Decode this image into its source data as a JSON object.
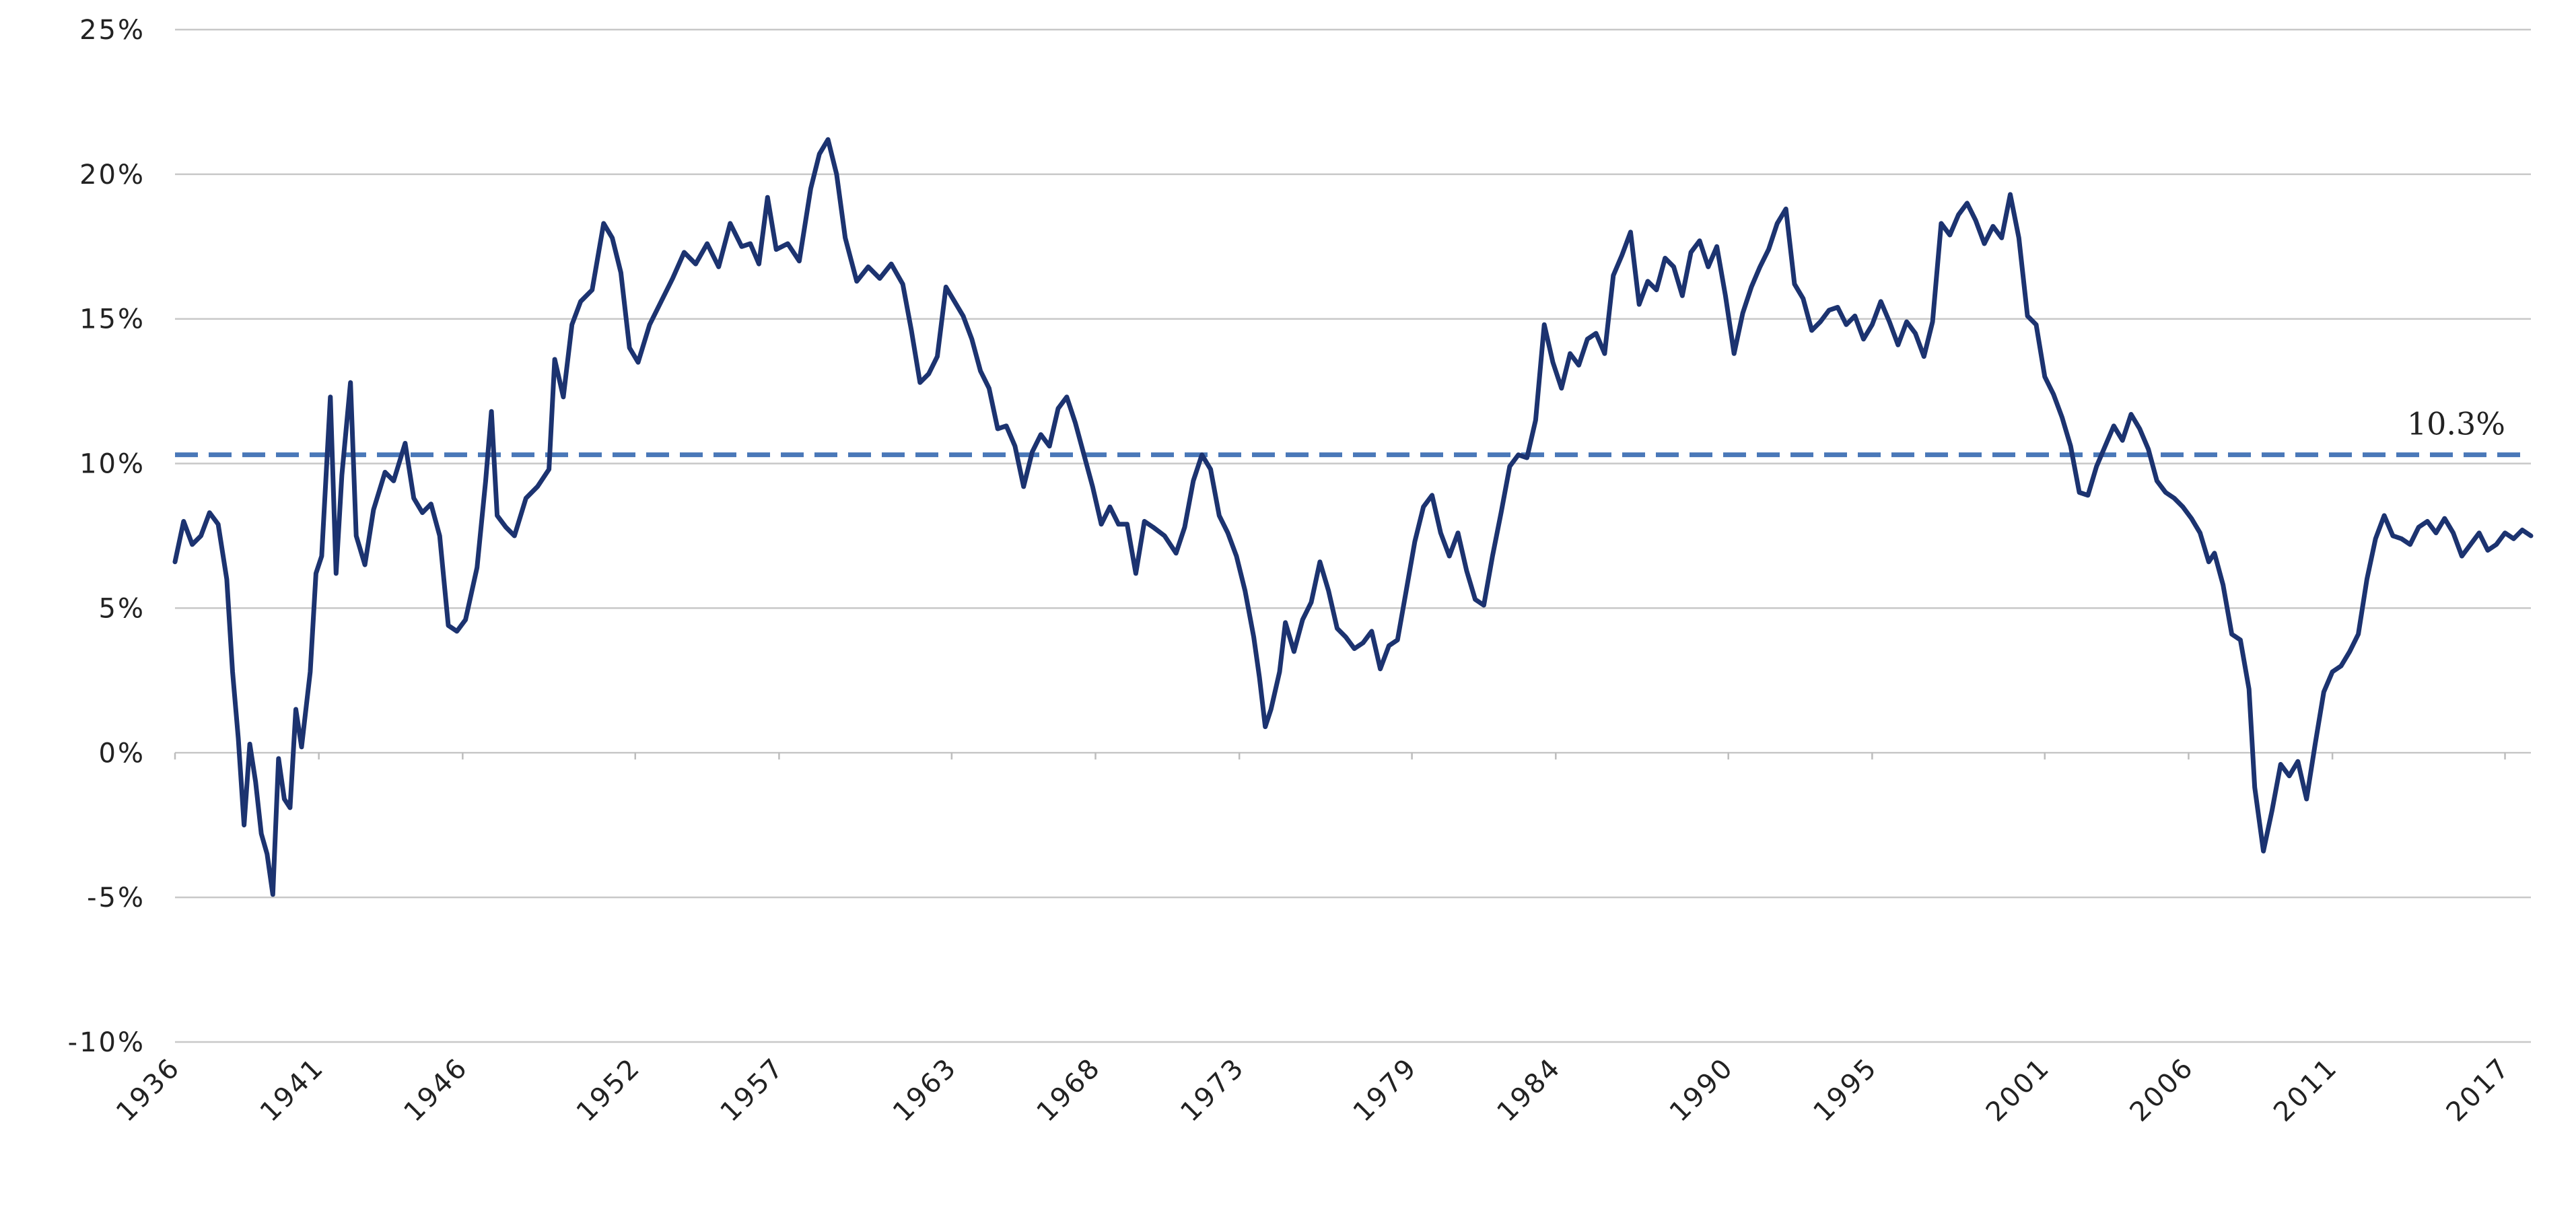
{
  "chart_data": {
    "type": "line",
    "title": "",
    "xlabel": "",
    "ylabel": "",
    "x_range": [
      1936,
      2017.9
    ],
    "ylim": [
      -10,
      25
    ],
    "y_tick_values": [
      -10,
      -5,
      0,
      5,
      10,
      15,
      20,
      25
    ],
    "y_tick_labels": [
      "-10%",
      "-5%",
      "0%",
      "5%",
      "10%",
      "15%",
      "20%",
      "25%"
    ],
    "x_tick_values": [
      1936,
      1941,
      1946,
      1952,
      1957,
      1963,
      1968,
      1973,
      1979,
      1984,
      1990,
      1995,
      2001,
      2006,
      2011,
      2017
    ],
    "x_tick_labels": [
      "1936",
      "1941",
      "1946",
      "1952",
      "1957",
      "1963",
      "1968",
      "1973",
      "1979",
      "1984",
      "1990",
      "1995",
      "2001",
      "2006",
      "2011",
      "2017"
    ],
    "grid": true,
    "colors": {
      "series": "#1c3370",
      "average": "#4a78b8",
      "grid": "#c8c8c8"
    },
    "average": {
      "value": 10.3,
      "label": "10.3%"
    },
    "series": [
      {
        "values": [
          [
            1936.0,
            6.6
          ],
          [
            1936.3,
            8.0
          ],
          [
            1936.6,
            7.2
          ],
          [
            1936.9,
            7.5
          ],
          [
            1937.2,
            8.3
          ],
          [
            1937.5,
            7.9
          ],
          [
            1937.8,
            6.0
          ],
          [
            1938.0,
            2.8
          ],
          [
            1938.2,
            0.5
          ],
          [
            1938.4,
            -2.5
          ],
          [
            1938.6,
            0.3
          ],
          [
            1938.8,
            -1.0
          ],
          [
            1939.0,
            -2.8
          ],
          [
            1939.2,
            -3.5
          ],
          [
            1939.4,
            -4.9
          ],
          [
            1939.6,
            -0.2
          ],
          [
            1939.8,
            -1.6
          ],
          [
            1940.0,
            -1.9
          ],
          [
            1940.2,
            1.5
          ],
          [
            1940.4,
            0.2
          ],
          [
            1940.7,
            2.8
          ],
          [
            1940.9,
            6.2
          ],
          [
            1941.1,
            6.8
          ],
          [
            1941.4,
            12.3
          ],
          [
            1941.6,
            6.2
          ],
          [
            1941.8,
            9.6
          ],
          [
            1942.1,
            12.8
          ],
          [
            1942.3,
            7.5
          ],
          [
            1942.6,
            6.5
          ],
          [
            1942.9,
            8.4
          ],
          [
            1943.3,
            9.7
          ],
          [
            1943.6,
            9.4
          ],
          [
            1944.0,
            10.7
          ],
          [
            1944.3,
            8.8
          ],
          [
            1944.6,
            8.3
          ],
          [
            1944.9,
            8.6
          ],
          [
            1945.2,
            7.5
          ],
          [
            1945.5,
            4.4
          ],
          [
            1945.8,
            4.2
          ],
          [
            1946.1,
            4.6
          ],
          [
            1946.5,
            6.4
          ],
          [
            1946.8,
            9.4
          ],
          [
            1947.0,
            11.8
          ],
          [
            1947.2,
            8.2
          ],
          [
            1947.5,
            7.8
          ],
          [
            1947.8,
            7.5
          ],
          [
            1948.2,
            8.8
          ],
          [
            1948.6,
            9.2
          ],
          [
            1949.0,
            9.8
          ],
          [
            1949.2,
            13.6
          ],
          [
            1949.5,
            12.3
          ],
          [
            1949.8,
            14.8
          ],
          [
            1950.1,
            15.6
          ],
          [
            1950.5,
            16.0
          ],
          [
            1950.9,
            18.3
          ],
          [
            1951.2,
            17.8
          ],
          [
            1951.5,
            16.6
          ],
          [
            1951.8,
            14.0
          ],
          [
            1952.1,
            13.5
          ],
          [
            1952.5,
            14.8
          ],
          [
            1952.9,
            15.6
          ],
          [
            1953.3,
            16.4
          ],
          [
            1953.7,
            17.3
          ],
          [
            1954.1,
            16.9
          ],
          [
            1954.5,
            17.6
          ],
          [
            1954.9,
            16.8
          ],
          [
            1955.3,
            18.3
          ],
          [
            1955.7,
            17.5
          ],
          [
            1956.0,
            17.6
          ],
          [
            1956.3,
            16.9
          ],
          [
            1956.6,
            19.2
          ],
          [
            1956.9,
            17.4
          ],
          [
            1957.3,
            17.6
          ],
          [
            1957.7,
            17.0
          ],
          [
            1958.1,
            19.5
          ],
          [
            1958.4,
            20.7
          ],
          [
            1958.7,
            21.2
          ],
          [
            1959.0,
            20.0
          ],
          [
            1959.3,
            17.8
          ],
          [
            1959.7,
            16.3
          ],
          [
            1960.1,
            16.8
          ],
          [
            1960.5,
            16.4
          ],
          [
            1960.9,
            16.9
          ],
          [
            1961.3,
            16.2
          ],
          [
            1961.6,
            14.6
          ],
          [
            1961.9,
            12.8
          ],
          [
            1962.2,
            13.1
          ],
          [
            1962.5,
            13.7
          ],
          [
            1962.8,
            16.1
          ],
          [
            1963.1,
            15.6
          ],
          [
            1963.4,
            15.1
          ],
          [
            1963.7,
            14.3
          ],
          [
            1964.0,
            13.2
          ],
          [
            1964.3,
            12.6
          ],
          [
            1964.6,
            11.2
          ],
          [
            1964.9,
            11.3
          ],
          [
            1965.2,
            10.6
          ],
          [
            1965.5,
            9.2
          ],
          [
            1965.8,
            10.4
          ],
          [
            1966.1,
            11.0
          ],
          [
            1966.4,
            10.6
          ],
          [
            1966.7,
            11.9
          ],
          [
            1967.0,
            12.3
          ],
          [
            1967.3,
            11.4
          ],
          [
            1967.6,
            10.3
          ],
          [
            1967.9,
            9.2
          ],
          [
            1968.2,
            7.9
          ],
          [
            1968.5,
            8.5
          ],
          [
            1968.8,
            7.9
          ],
          [
            1969.1,
            7.9
          ],
          [
            1969.4,
            6.2
          ],
          [
            1969.7,
            8.0
          ],
          [
            1970.0,
            7.8
          ],
          [
            1970.4,
            7.5
          ],
          [
            1970.8,
            6.9
          ],
          [
            1971.1,
            7.8
          ],
          [
            1971.4,
            9.4
          ],
          [
            1971.7,
            10.3
          ],
          [
            1972.0,
            9.8
          ],
          [
            1972.3,
            8.2
          ],
          [
            1972.6,
            7.6
          ],
          [
            1972.9,
            6.8
          ],
          [
            1973.2,
            5.6
          ],
          [
            1973.5,
            4.0
          ],
          [
            1973.7,
            2.6
          ],
          [
            1973.9,
            0.9
          ],
          [
            1974.1,
            1.5
          ],
          [
            1974.4,
            2.8
          ],
          [
            1974.6,
            4.5
          ],
          [
            1974.9,
            3.5
          ],
          [
            1975.2,
            4.6
          ],
          [
            1975.5,
            5.2
          ],
          [
            1975.8,
            6.6
          ],
          [
            1976.1,
            5.6
          ],
          [
            1976.4,
            4.3
          ],
          [
            1976.7,
            4.0
          ],
          [
            1977.0,
            3.6
          ],
          [
            1977.3,
            3.8
          ],
          [
            1977.6,
            4.2
          ],
          [
            1977.9,
            2.9
          ],
          [
            1978.2,
            3.7
          ],
          [
            1978.5,
            3.9
          ],
          [
            1978.8,
            5.6
          ],
          [
            1979.1,
            7.3
          ],
          [
            1979.4,
            8.5
          ],
          [
            1979.7,
            8.9
          ],
          [
            1980.0,
            7.6
          ],
          [
            1980.3,
            6.8
          ],
          [
            1980.6,
            7.6
          ],
          [
            1980.9,
            6.3
          ],
          [
            1981.2,
            5.3
          ],
          [
            1981.5,
            5.1
          ],
          [
            1981.8,
            6.8
          ],
          [
            1982.1,
            8.3
          ],
          [
            1982.4,
            9.9
          ],
          [
            1982.7,
            10.3
          ],
          [
            1983.0,
            10.2
          ],
          [
            1983.3,
            11.5
          ],
          [
            1983.6,
            14.8
          ],
          [
            1983.9,
            13.5
          ],
          [
            1984.2,
            12.6
          ],
          [
            1984.5,
            13.8
          ],
          [
            1984.8,
            13.4
          ],
          [
            1985.1,
            14.3
          ],
          [
            1985.4,
            14.5
          ],
          [
            1985.7,
            13.8
          ],
          [
            1986.0,
            16.5
          ],
          [
            1986.3,
            17.2
          ],
          [
            1986.6,
            18.0
          ],
          [
            1986.9,
            15.5
          ],
          [
            1987.2,
            16.3
          ],
          [
            1987.5,
            16.0
          ],
          [
            1987.8,
            17.1
          ],
          [
            1988.1,
            16.8
          ],
          [
            1988.4,
            15.8
          ],
          [
            1988.7,
            17.3
          ],
          [
            1989.0,
            17.7
          ],
          [
            1989.3,
            16.8
          ],
          [
            1989.6,
            17.5
          ],
          [
            1989.9,
            15.8
          ],
          [
            1990.2,
            13.8
          ],
          [
            1990.5,
            15.2
          ],
          [
            1990.8,
            16.1
          ],
          [
            1991.1,
            16.8
          ],
          [
            1991.4,
            17.4
          ],
          [
            1991.7,
            18.3
          ],
          [
            1992.0,
            18.8
          ],
          [
            1992.3,
            16.2
          ],
          [
            1992.6,
            15.7
          ],
          [
            1992.9,
            14.6
          ],
          [
            1993.2,
            14.9
          ],
          [
            1993.5,
            15.3
          ],
          [
            1993.8,
            15.4
          ],
          [
            1994.1,
            14.8
          ],
          [
            1994.4,
            15.1
          ],
          [
            1994.7,
            14.3
          ],
          [
            1995.0,
            14.8
          ],
          [
            1995.3,
            15.6
          ],
          [
            1995.6,
            14.9
          ],
          [
            1995.9,
            14.1
          ],
          [
            1996.2,
            14.9
          ],
          [
            1996.5,
            14.5
          ],
          [
            1996.8,
            13.7
          ],
          [
            1997.1,
            14.9
          ],
          [
            1997.4,
            18.3
          ],
          [
            1997.7,
            17.9
          ],
          [
            1998.0,
            18.6
          ],
          [
            1998.3,
            19.0
          ],
          [
            1998.6,
            18.4
          ],
          [
            1998.9,
            17.6
          ],
          [
            1999.2,
            18.2
          ],
          [
            1999.5,
            17.8
          ],
          [
            1999.8,
            19.3
          ],
          [
            2000.1,
            17.8
          ],
          [
            2000.4,
            15.1
          ],
          [
            2000.7,
            14.8
          ],
          [
            2001.0,
            13.0
          ],
          [
            2001.3,
            12.4
          ],
          [
            2001.6,
            11.6
          ],
          [
            2001.9,
            10.6
          ],
          [
            2002.2,
            9.0
          ],
          [
            2002.5,
            8.9
          ],
          [
            2002.8,
            9.9
          ],
          [
            2003.1,
            10.6
          ],
          [
            2003.4,
            11.3
          ],
          [
            2003.7,
            10.8
          ],
          [
            2004.0,
            11.7
          ],
          [
            2004.3,
            11.2
          ],
          [
            2004.6,
            10.5
          ],
          [
            2004.9,
            9.4
          ],
          [
            2005.2,
            9.0
          ],
          [
            2005.5,
            8.8
          ],
          [
            2005.8,
            8.5
          ],
          [
            2006.1,
            8.1
          ],
          [
            2006.4,
            7.6
          ],
          [
            2006.7,
            6.6
          ],
          [
            2006.9,
            6.9
          ],
          [
            2007.2,
            5.8
          ],
          [
            2007.5,
            4.1
          ],
          [
            2007.8,
            3.9
          ],
          [
            2008.1,
            2.2
          ],
          [
            2008.3,
            -1.2
          ],
          [
            2008.6,
            -3.4
          ],
          [
            2008.9,
            -2.0
          ],
          [
            2009.2,
            -0.4
          ],
          [
            2009.5,
            -0.8
          ],
          [
            2009.8,
            -0.3
          ],
          [
            2010.1,
            -1.6
          ],
          [
            2010.4,
            0.3
          ],
          [
            2010.7,
            2.1
          ],
          [
            2011.0,
            2.8
          ],
          [
            2011.3,
            3.0
          ],
          [
            2011.6,
            3.5
          ],
          [
            2011.9,
            4.1
          ],
          [
            2012.2,
            6.0
          ],
          [
            2012.5,
            7.4
          ],
          [
            2012.8,
            8.2
          ],
          [
            2013.1,
            7.5
          ],
          [
            2013.4,
            7.4
          ],
          [
            2013.7,
            7.2
          ],
          [
            2014.0,
            7.8
          ],
          [
            2014.3,
            8.0
          ],
          [
            2014.6,
            7.6
          ],
          [
            2014.9,
            8.1
          ],
          [
            2015.2,
            7.6
          ],
          [
            2015.5,
            6.8
          ],
          [
            2015.8,
            7.2
          ],
          [
            2016.1,
            7.6
          ],
          [
            2016.4,
            7.0
          ],
          [
            2016.7,
            7.2
          ],
          [
            2017.0,
            7.6
          ],
          [
            2017.3,
            7.4
          ],
          [
            2017.6,
            7.7
          ],
          [
            2017.9,
            7.5
          ]
        ]
      }
    ]
  }
}
